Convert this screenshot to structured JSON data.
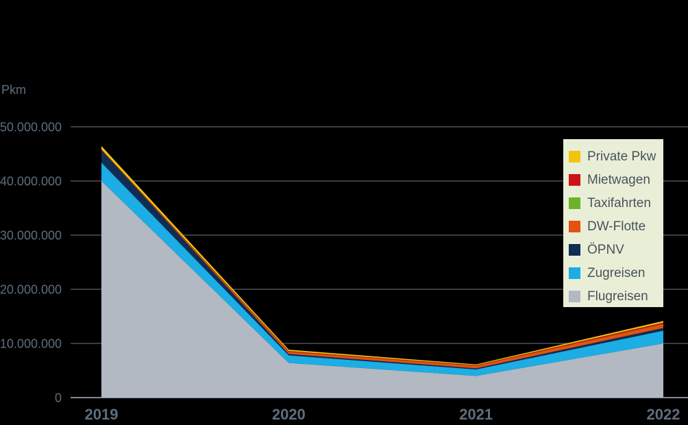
{
  "background_color": "#000000",
  "axis": {
    "label_color": "#5E6E7E",
    "grid_color": "#8F99A7",
    "y_title": "Pkm",
    "y_tick_labels": [
      "0",
      "10.000.000",
      "20.000.000",
      "30.000.000",
      "40.000.000",
      "50.000.000"
    ],
    "x_tick_labels": [
      "2019",
      "2020",
      "2021",
      "2022"
    ]
  },
  "legend": {
    "background_color": "#E9EFD6",
    "text_color": "#47525E",
    "position": "top-right"
  },
  "chart_data": {
    "type": "area",
    "stacked": true,
    "title": "",
    "xlabel": "",
    "ylabel": "Pkm",
    "x": [
      "2019",
      "2020",
      "2021",
      "2022"
    ],
    "ylim": [
      0,
      50000000
    ],
    "y_ticks": [
      0,
      10000000,
      20000000,
      30000000,
      40000000,
      50000000
    ],
    "grid": true,
    "legend_position": "right",
    "series_top_to_bottom": [
      {
        "name": "Private Pkw",
        "color": "#F2C40E",
        "values": [
          600000,
          250000,
          150000,
          300000
        ]
      },
      {
        "name": "Mietwagen",
        "color": "#CC1417",
        "values": [
          80000,
          120000,
          100000,
          250000
        ]
      },
      {
        "name": "Taxifahrten",
        "color": "#6CB32B",
        "values": [
          30000,
          30000,
          30000,
          50000
        ]
      },
      {
        "name": "DW-Flotte",
        "color": "#E55110",
        "values": [
          40000,
          400000,
          450000,
          700000
        ]
      },
      {
        "name": "ÖPNV",
        "color": "#0F2D52",
        "values": [
          2300000,
          250000,
          200000,
          500000
        ]
      },
      {
        "name": "Zugreisen",
        "color": "#1CADE4",
        "values": [
          3400000,
          1400000,
          1200000,
          2350000
        ]
      },
      {
        "name": "Flugreisen",
        "color": "#B2B9C3",
        "values": [
          40000000,
          6400000,
          4000000,
          10000000
        ]
      }
    ]
  }
}
